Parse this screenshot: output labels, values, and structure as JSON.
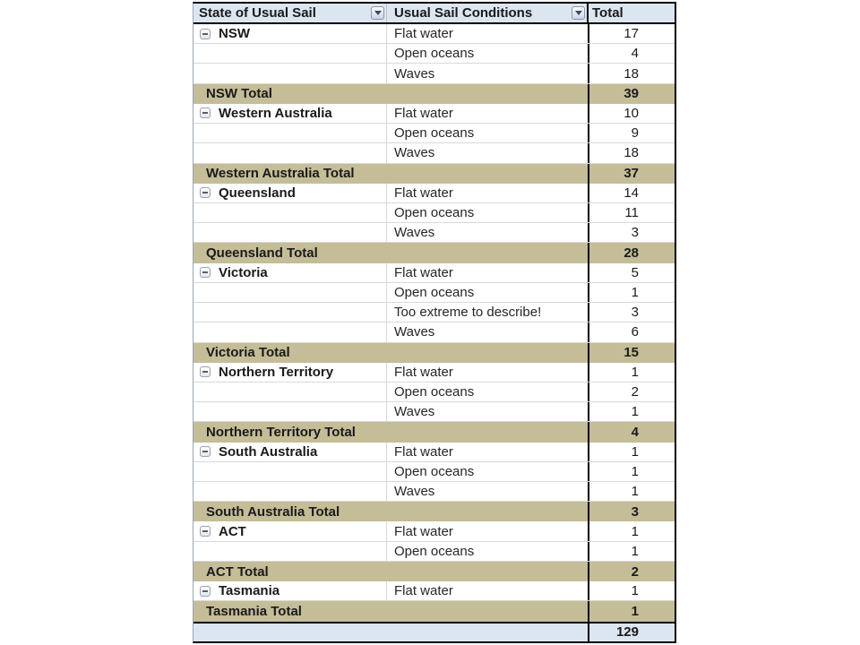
{
  "header": {
    "state_column": "State of Usual Sail",
    "conditions_column": "Usual Sail Conditions",
    "total_column": "Total"
  },
  "groups": [
    {
      "state": "NSW",
      "items": [
        {
          "condition": "Flat water",
          "count": 17
        },
        {
          "condition": "Open oceans",
          "count": 4
        },
        {
          "condition": "Waves",
          "count": 18
        }
      ],
      "total_label": "NSW Total",
      "total": 39
    },
    {
      "state": "Western Australia",
      "items": [
        {
          "condition": "Flat water",
          "count": 10
        },
        {
          "condition": "Open oceans",
          "count": 9
        },
        {
          "condition": "Waves",
          "count": 18
        }
      ],
      "total_label": "Western Australia Total",
      "total": 37
    },
    {
      "state": "Queensland",
      "items": [
        {
          "condition": "Flat water",
          "count": 14
        },
        {
          "condition": "Open oceans",
          "count": 11
        },
        {
          "condition": "Waves",
          "count": 3
        }
      ],
      "total_label": "Queensland Total",
      "total": 28
    },
    {
      "state": "Victoria",
      "items": [
        {
          "condition": "Flat water",
          "count": 5
        },
        {
          "condition": "Open oceans",
          "count": 1
        },
        {
          "condition": "Too extreme to describe!",
          "count": 3
        },
        {
          "condition": "Waves",
          "count": 6
        }
      ],
      "total_label": "Victoria Total",
      "total": 15
    },
    {
      "state": "Northern Territory",
      "items": [
        {
          "condition": "Flat water",
          "count": 1
        },
        {
          "condition": "Open oceans",
          "count": 2
        },
        {
          "condition": "Waves",
          "count": 1
        }
      ],
      "total_label": "Northern Territory Total",
      "total": 4
    },
    {
      "state": "South Australia",
      "items": [
        {
          "condition": "Flat water",
          "count": 1
        },
        {
          "condition": "Open oceans",
          "count": 1
        },
        {
          "condition": "Waves",
          "count": 1
        }
      ],
      "total_label": "South Australia Total",
      "total": 3
    },
    {
      "state": "ACT",
      "items": [
        {
          "condition": "Flat water",
          "count": 1
        },
        {
          "condition": "Open oceans",
          "count": 1
        }
      ],
      "total_label": "ACT Total",
      "total": 2
    },
    {
      "state": "Tasmania",
      "items": [
        {
          "condition": "Flat water",
          "count": 1
        }
      ],
      "total_label": "Tasmania Total",
      "total": 1
    }
  ],
  "grand_total": 129,
  "icons": {
    "filter_dropdown": "chevron-down-icon",
    "collapse": "minus-icon"
  },
  "colors": {
    "header_bg": "#DCE6F1",
    "subtotal_bg": "#C4BD97",
    "grand_total_bg": "#DCE6F1",
    "heavy_border": "#000000",
    "row_separator": "#D9D9D9"
  }
}
